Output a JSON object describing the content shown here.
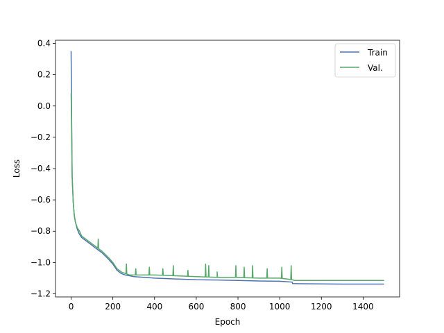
{
  "chart_data": {
    "type": "line",
    "title": "",
    "xlabel": "Epoch",
    "ylabel": "Loss",
    "xlim": [
      -75,
      1575
    ],
    "ylim": [
      -1.22,
      0.42
    ],
    "x_ticks": [
      0,
      200,
      400,
      600,
      800,
      1000,
      1200,
      1400
    ],
    "x_tick_labels": [
      "0",
      "200",
      "400",
      "600",
      "800",
      "1000",
      "1200",
      "1400"
    ],
    "y_ticks": [
      0.4,
      0.2,
      0.0,
      -0.2,
      -0.4,
      -0.6,
      -0.8,
      -1.0,
      -1.2
    ],
    "y_tick_labels": [
      "0.4",
      "0.2",
      "0.0",
      "−0.2",
      "−0.4",
      "−0.6",
      "−0.8",
      "−1.0",
      "−1.2"
    ],
    "legend_position": "top-right",
    "grid": false,
    "series": [
      {
        "name": "Train",
        "color": "#4c72b0",
        "x": [
          0,
          2,
          5,
          10,
          15,
          20,
          30,
          40,
          50,
          60,
          80,
          100,
          120,
          150,
          180,
          200,
          220,
          240,
          260,
          300,
          400,
          500,
          600,
          700,
          800,
          900,
          1000,
          1060,
          1062,
          1100,
          1200,
          1300,
          1400,
          1500
        ],
        "y": [
          0.35,
          0.0,
          -0.45,
          -0.62,
          -0.7,
          -0.74,
          -0.79,
          -0.82,
          -0.84,
          -0.85,
          -0.87,
          -0.89,
          -0.91,
          -0.94,
          -0.98,
          -1.01,
          -1.05,
          -1.07,
          -1.08,
          -1.09,
          -1.1,
          -1.105,
          -1.11,
          -1.112,
          -1.115,
          -1.118,
          -1.12,
          -1.125,
          -1.135,
          -1.136,
          -1.137,
          -1.138,
          -1.138,
          -1.138
        ]
      },
      {
        "name": "Val.",
        "color": "#55a868",
        "x": [
          0,
          2,
          5,
          10,
          15,
          20,
          30,
          40,
          50,
          60,
          80,
          100,
          120,
          150,
          180,
          200,
          220,
          240,
          260,
          280,
          300,
          400,
          500,
          600,
          700,
          800,
          900,
          1000,
          1060,
          1070,
          1200,
          1300,
          1400,
          1500
        ],
        "y": [
          0.08,
          -0.1,
          -0.45,
          -0.62,
          -0.7,
          -0.74,
          -0.78,
          -0.8,
          -0.83,
          -0.84,
          -0.86,
          -0.88,
          -0.9,
          -0.93,
          -0.97,
          -1.0,
          -1.04,
          -1.06,
          -1.07,
          -1.08,
          -1.08,
          -1.08,
          -1.085,
          -1.09,
          -1.095,
          -1.095,
          -1.1,
          -1.1,
          -1.11,
          -1.115,
          -1.115,
          -1.115,
          -1.115,
          -1.115
        ]
      }
    ],
    "val_spikes": [
      {
        "x": 130,
        "y": -0.85
      },
      {
        "x": 265,
        "y": -1.01
      },
      {
        "x": 310,
        "y": -1.04
      },
      {
        "x": 375,
        "y": -1.03
      },
      {
        "x": 440,
        "y": -1.04
      },
      {
        "x": 490,
        "y": -1.02
      },
      {
        "x": 560,
        "y": -1.05
      },
      {
        "x": 645,
        "y": -1.01
      },
      {
        "x": 660,
        "y": -1.02
      },
      {
        "x": 700,
        "y": -1.06
      },
      {
        "x": 790,
        "y": -1.02
      },
      {
        "x": 830,
        "y": -1.03
      },
      {
        "x": 870,
        "y": -1.02
      },
      {
        "x": 940,
        "y": -1.04
      },
      {
        "x": 1010,
        "y": -1.03
      },
      {
        "x": 1055,
        "y": -1.02
      }
    ]
  }
}
